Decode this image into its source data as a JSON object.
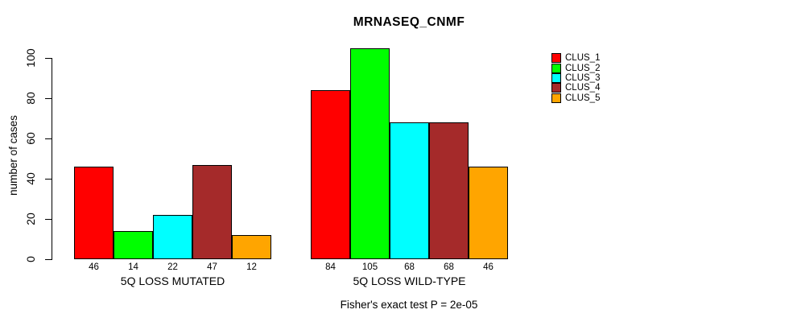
{
  "title": "MRNASEQ_CNMF",
  "caption": "Fisher's exact test P = 2e-05",
  "chart_data": {
    "type": "bar",
    "title": "MRNASEQ_CNMF",
    "xlabel": "",
    "ylabel": "number of cases",
    "ylim": [
      0,
      100
    ],
    "yticks": [
      0,
      20,
      40,
      60,
      80,
      100
    ],
    "grid": false,
    "legend_position": "right",
    "bar_value_labels_shown": true,
    "categories": [
      "5Q LOSS MUTATED",
      "5Q LOSS WILD-TYPE"
    ],
    "series": [
      {
        "name": "CLUS_1",
        "color": "#FF0000",
        "values": [
          46,
          84
        ]
      },
      {
        "name": "CLUS_2",
        "color": "#00FF00",
        "values": [
          14,
          105
        ]
      },
      {
        "name": "CLUS_3",
        "color": "#00FFFF",
        "values": [
          22,
          68
        ]
      },
      {
        "name": "CLUS_4",
        "color": "#A52A2A",
        "values": [
          47,
          68
        ]
      },
      {
        "name": "CLUS_5",
        "color": "#FFA500",
        "values": [
          12,
          46
        ]
      }
    ],
    "annotation": "Fisher's exact test P = 2e-05"
  }
}
